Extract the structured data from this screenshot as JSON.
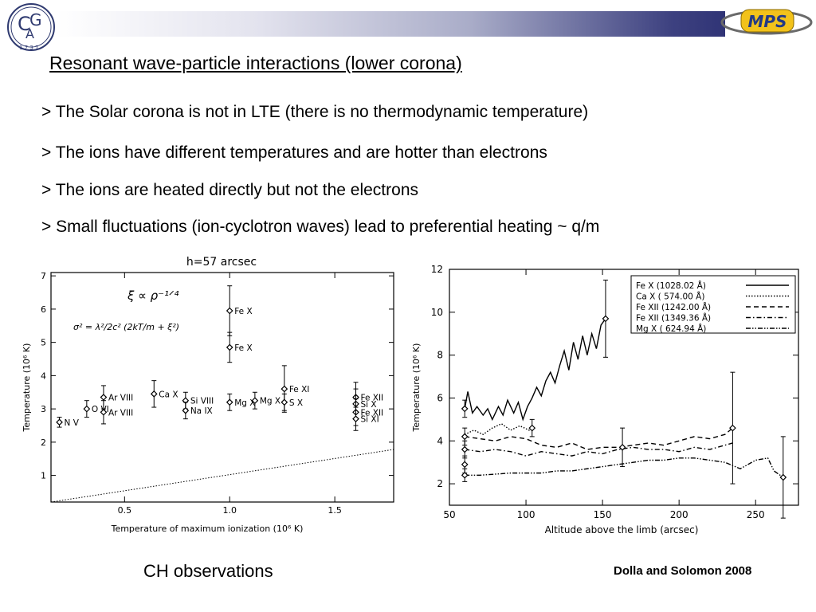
{
  "slide": {
    "title": "Resonant wave-particle interactions (lower corona)",
    "bullets": [
      "> The Solar corona is not in LTE (there is no thermodynamic temperature)",
      "> The ions have different temperatures and are hotter than electrons",
      "> The ions are heated directly but not the electrons",
      "> Small fluctuations (ion-cyclotron waves) lead to preferential heating ~ q/m"
    ],
    "caption_left": "CH observations",
    "caption_right": "Dolla and Solomon 2008",
    "logo_right_text": "MPS"
  },
  "chart_data": [
    {
      "type": "scatter",
      "title": "h=57  arcsec",
      "xlabel": "Temperature  of  maximum  ionization  (10⁶ K)",
      "ylabel": "Temperature  (10⁶ K)",
      "xlim": [
        0.15,
        1.78
      ],
      "ylim": [
        0.2,
        7.1
      ],
      "xticks": [
        "0.5",
        "1.0",
        "1.5"
      ],
      "yticks": [
        "1",
        "2",
        "3",
        "4",
        "5",
        "6",
        "7"
      ],
      "formula_1": "ξ ∝ ρ⁻¹ᐟ⁴",
      "formula_2": "σ² = λ²/2c² (2kT/m + ξ²)",
      "reference_line": {
        "x": [
          0.15,
          1.78
        ],
        "y": [
          0.15,
          1.78
        ],
        "style": "dotted"
      },
      "points": [
        {
          "label": "N  V",
          "x": 0.19,
          "y": 2.6,
          "err": 0.15
        },
        {
          "label": "O  VI",
          "x": 0.32,
          "y": 3.0,
          "err": 0.25
        },
        {
          "label": "Ar  VIII",
          "x": 0.4,
          "y": 3.35,
          "err": 0.35
        },
        {
          "label": "Ar  VIII",
          "x": 0.4,
          "y": 2.9,
          "err": 0.35
        },
        {
          "label": "Ca  X",
          "x": 0.64,
          "y": 3.45,
          "err": 0.4
        },
        {
          "label": "Si  VIII",
          "x": 0.79,
          "y": 3.25,
          "err": 0.25
        },
        {
          "label": "Na  IX",
          "x": 0.79,
          "y": 2.95,
          "err": 0.25
        },
        {
          "label": "Fe  X",
          "x": 1.0,
          "y": 5.95,
          "err": 0.75
        },
        {
          "label": "Fe  X",
          "x": 1.0,
          "y": 4.85,
          "err": 0.45
        },
        {
          "label": "Mg  X",
          "x": 1.0,
          "y": 3.2,
          "err": 0.25
        },
        {
          "label": "Mg  X",
          "x": 1.12,
          "y": 3.25,
          "err": 0.25
        },
        {
          "label": "Fe  XI",
          "x": 1.26,
          "y": 3.6,
          "err": 0.7
        },
        {
          "label": "S  X",
          "x": 1.26,
          "y": 3.2,
          "err": 0.25
        },
        {
          "label": "Fe  XII",
          "x": 1.6,
          "y": 3.35,
          "err": 0.45
        },
        {
          "label": "Si  X",
          "x": 1.6,
          "y": 3.15,
          "err": 0.45
        },
        {
          "label": "Fe  XII",
          "x": 1.6,
          "y": 2.9,
          "err": 0.4
        },
        {
          "label": "Si  XI",
          "x": 1.6,
          "y": 2.7,
          "err": 0.35
        }
      ]
    },
    {
      "type": "line",
      "xlabel": "Altitude  above  the  limb  (arcsec)",
      "ylabel": "Temperature  (10⁶ K)",
      "xlim": [
        50,
        278
      ],
      "ylim": [
        1,
        12
      ],
      "xticks": [
        "50",
        "100",
        "150",
        "200",
        "250"
      ],
      "yticks": [
        "2",
        "4",
        "6",
        "8",
        "10",
        "12"
      ],
      "legend_position": "top-right",
      "series": [
        {
          "name": "Fe  X  (1028.02 Å)",
          "style": "solid",
          "x": [
            60,
            62,
            65,
            68,
            72,
            75,
            78,
            82,
            85,
            88,
            92,
            95,
            98,
            101,
            104,
            107,
            110,
            113,
            116,
            119,
            122,
            125,
            128,
            131,
            134,
            137,
            140,
            143,
            146,
            149,
            152
          ],
          "y": [
            5.5,
            6.3,
            5.3,
            5.6,
            5.2,
            5.5,
            5.0,
            5.6,
            5.2,
            5.9,
            5.3,
            5.8,
            5.0,
            5.6,
            6.0,
            6.5,
            6.1,
            6.8,
            7.2,
            6.7,
            7.5,
            8.2,
            7.3,
            8.6,
            7.8,
            8.9,
            8.0,
            9.0,
            8.3,
            9.4,
            9.7
          ]
        },
        {
          "name": "Ca  X  ( 574.00 Å)",
          "style": "dotted",
          "x": [
            60,
            66,
            72,
            78,
            84,
            90,
            96,
            102,
            105
          ],
          "y": [
            4.3,
            4.5,
            4.3,
            4.6,
            4.8,
            4.5,
            4.7,
            4.5,
            4.6
          ]
        },
        {
          "name": "Fe XII  (1242.00 Å)",
          "style": "dashed",
          "x": [
            60,
            70,
            80,
            90,
            100,
            110,
            120,
            130,
            140,
            150,
            160,
            170,
            180,
            190,
            200,
            210,
            220,
            230,
            235
          ],
          "y": [
            4.2,
            4.1,
            4.0,
            4.2,
            4.1,
            3.8,
            3.7,
            3.9,
            3.6,
            3.7,
            3.7,
            3.8,
            3.9,
            3.8,
            4.0,
            4.2,
            4.1,
            4.3,
            4.6
          ]
        },
        {
          "name": "Fe XII  (1349.36 Å)",
          "style": "dash-dot",
          "x": [
            60,
            70,
            80,
            90,
            100,
            110,
            120,
            130,
            140,
            150,
            160,
            170,
            180,
            190,
            200,
            210,
            220,
            230,
            235
          ],
          "y": [
            3.6,
            3.5,
            3.6,
            3.5,
            3.3,
            3.5,
            3.4,
            3.3,
            3.5,
            3.4,
            3.6,
            3.7,
            3.6,
            3.6,
            3.5,
            3.7,
            3.6,
            3.8,
            3.9
          ]
        },
        {
          "name": "Mg  X  ( 624.94 Å)",
          "style": "dash-dot-dot",
          "x": [
            60,
            70,
            80,
            90,
            100,
            110,
            120,
            130,
            140,
            150,
            160,
            170,
            180,
            190,
            200,
            210,
            220,
            230,
            240,
            250,
            258,
            262,
            268
          ],
          "y": [
            2.4,
            2.4,
            2.45,
            2.5,
            2.5,
            2.5,
            2.6,
            2.6,
            2.7,
            2.8,
            2.9,
            3.0,
            3.1,
            3.1,
            3.2,
            3.2,
            3.1,
            3.0,
            2.7,
            3.1,
            3.2,
            2.6,
            2.3
          ]
        }
      ],
      "error_bars": [
        {
          "x": 60,
          "y": 5.5,
          "err": 0.4
        },
        {
          "x": 60,
          "y": 4.2,
          "err": 0.4
        },
        {
          "x": 60,
          "y": 3.6,
          "err": 0.4
        },
        {
          "x": 60,
          "y": 2.9,
          "err": 0.4
        },
        {
          "x": 60,
          "y": 2.4,
          "err": 0.3
        },
        {
          "x": 104,
          "y": 4.6,
          "err": 0.4
        },
        {
          "x": 152,
          "y": 9.7,
          "err": 1.8
        },
        {
          "x": 163,
          "y": 3.7,
          "err": 0.9
        },
        {
          "x": 235,
          "y": 4.6,
          "err": 2.6
        },
        {
          "x": 268,
          "y": 2.3,
          "err": 1.9
        }
      ]
    }
  ]
}
